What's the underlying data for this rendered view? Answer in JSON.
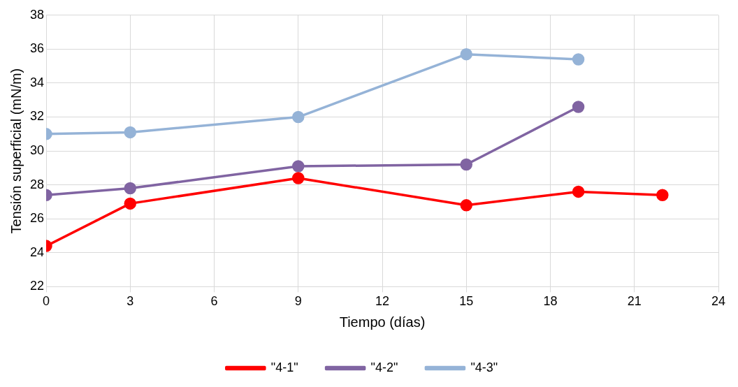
{
  "chart_data": {
    "type": "line",
    "xlabel": "Tiempo (días)",
    "ylabel": "Tensión superficial (mN/m)",
    "xlim": [
      0,
      24
    ],
    "xticks": [
      0,
      3,
      6,
      9,
      12,
      15,
      18,
      21,
      24
    ],
    "ylim": [
      22,
      38
    ],
    "yticks": [
      22,
      24,
      26,
      28,
      30,
      32,
      34,
      36,
      38
    ],
    "grid": true,
    "legend": "bottom",
    "marker": "circle",
    "line_style": "solid",
    "series": [
      {
        "name": "\"4-1\"",
        "color": "#ff0000",
        "x": [
          0,
          3,
          9,
          15,
          19,
          22
        ],
        "values": [
          24.4,
          26.9,
          28.4,
          26.8,
          27.6,
          27.4
        ]
      },
      {
        "name": "\"4-2\"",
        "color": "#8064a2",
        "x": [
          0,
          3,
          9,
          15,
          19
        ],
        "values": [
          27.4,
          27.8,
          29.1,
          29.2,
          32.6
        ]
      },
      {
        "name": "\"4-3\"",
        "color": "#95b3d7",
        "x": [
          0,
          3,
          9,
          15,
          19
        ],
        "values": [
          31.0,
          31.1,
          32.0,
          35.7,
          35.4
        ]
      }
    ]
  }
}
